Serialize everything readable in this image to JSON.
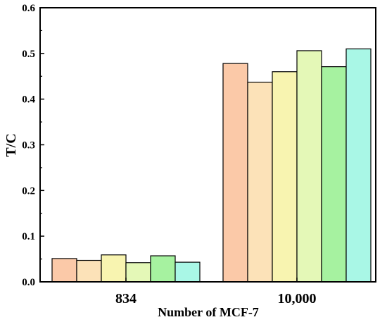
{
  "chart_data": {
    "type": "bar",
    "title": "",
    "xlabel": "Number of MCF-7",
    "ylabel": "T/C",
    "ylim": [
      0,
      0.6
    ],
    "yticks": [
      "0.0",
      "0.1",
      "0.2",
      "0.3",
      "0.4",
      "0.5",
      "0.6"
    ],
    "categories": [
      "834",
      "10,000"
    ],
    "grid": false,
    "legend": "none",
    "series": [
      {
        "color": "#FBC9A8",
        "values": [
          0.051,
          0.478
        ]
      },
      {
        "color": "#FCE2B8",
        "values": [
          0.047,
          0.437
        ]
      },
      {
        "color": "#F8F4B0",
        "values": [
          0.059,
          0.46
        ]
      },
      {
        "color": "#E4F8B7",
        "values": [
          0.042,
          0.506
        ]
      },
      {
        "color": "#A6F2A0",
        "values": [
          0.057,
          0.471
        ]
      },
      {
        "color": "#A9F7E6",
        "values": [
          0.043,
          0.51
        ]
      }
    ]
  }
}
